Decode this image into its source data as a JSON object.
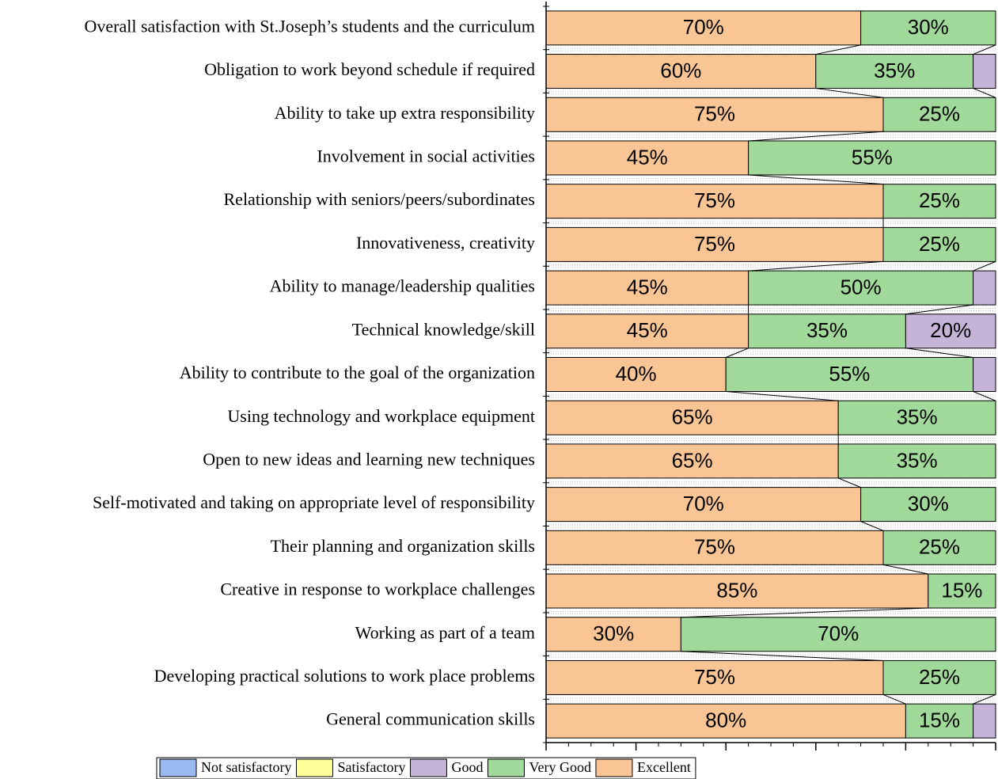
{
  "chart_data": {
    "type": "stacked_barh",
    "categories": [
      "Overall satisfaction with St.Joseph’s  students and the curriculum",
      "Obligation to work beyond schedule if required",
      "Ability to take up extra responsibility",
      "Involvement in social activities",
      "Relationship with seniors/peers/subordinates",
      "Innovativeness, creativity",
      "Ability to manage/leadership qualities",
      "Technical knowledge/skill",
      "Ability to contribute to the goal of the organization",
      "Using technology and workplace equipment",
      "Open to new ideas and learning new techniques",
      "Self-motivated and taking on appropriate level of responsibility",
      "Their planning and organization skills",
      "Creative in response to workplace challenges",
      "Working as part of a team",
      "Developing practical solutions to work place problems",
      "General communication skills"
    ],
    "series": [
      {
        "name": "Excellent",
        "color": "#f9c595",
        "values": [
          70,
          60,
          75,
          45,
          75,
          75,
          45,
          45,
          40,
          65,
          65,
          70,
          75,
          85,
          30,
          75,
          80
        ],
        "value_labels": [
          "70%",
          "60%",
          "75%",
          "45%",
          "75%",
          "75%",
          "45%",
          "45%",
          "40%",
          "65%",
          "65%",
          "70%",
          "75%",
          "85%",
          "30%",
          "75%",
          "80%"
        ]
      },
      {
        "name": "Very Good",
        "color": "#a0d99a",
        "values": [
          30,
          35,
          25,
          55,
          25,
          25,
          50,
          35,
          55,
          35,
          35,
          30,
          25,
          15,
          70,
          25,
          15
        ],
        "value_labels": [
          "30%",
          "35%",
          "25%",
          "55%",
          "25%",
          "25%",
          "50%",
          "35%",
          "55%",
          "35%",
          "35%",
          "30%",
          "25%",
          "15%",
          "70%",
          "25%",
          "15%"
        ]
      },
      {
        "name": "Good",
        "color": "#c5b3d8",
        "values": [
          0,
          5,
          0,
          0,
          0,
          0,
          5,
          20,
          5,
          0,
          0,
          0,
          0,
          0,
          0,
          0,
          5
        ],
        "value_labels": [
          null,
          null,
          null,
          null,
          null,
          null,
          null,
          "20%",
          null,
          null,
          null,
          null,
          null,
          null,
          null,
          null,
          null
        ]
      },
      {
        "name": "Satisfactory",
        "color": "#ffff99",
        "values": [
          0,
          0,
          0,
          0,
          0,
          0,
          0,
          0,
          0,
          0,
          0,
          0,
          0,
          0,
          0,
          0,
          0
        ]
      },
      {
        "name": "Not satisfactory",
        "color": "#99b9f0",
        "values": [
          0,
          0,
          0,
          0,
          0,
          0,
          0,
          0,
          0,
          0,
          0,
          0,
          0,
          0,
          0,
          0,
          0
        ]
      }
    ],
    "xlim": [
      0,
      100
    ],
    "xticks": [
      0,
      20,
      40,
      60,
      80,
      100
    ],
    "legend": "bottom",
    "legend_order": [
      "Not satisfactory",
      "Satisfactory",
      "Good",
      "Very Good",
      "Excellent"
    ]
  }
}
